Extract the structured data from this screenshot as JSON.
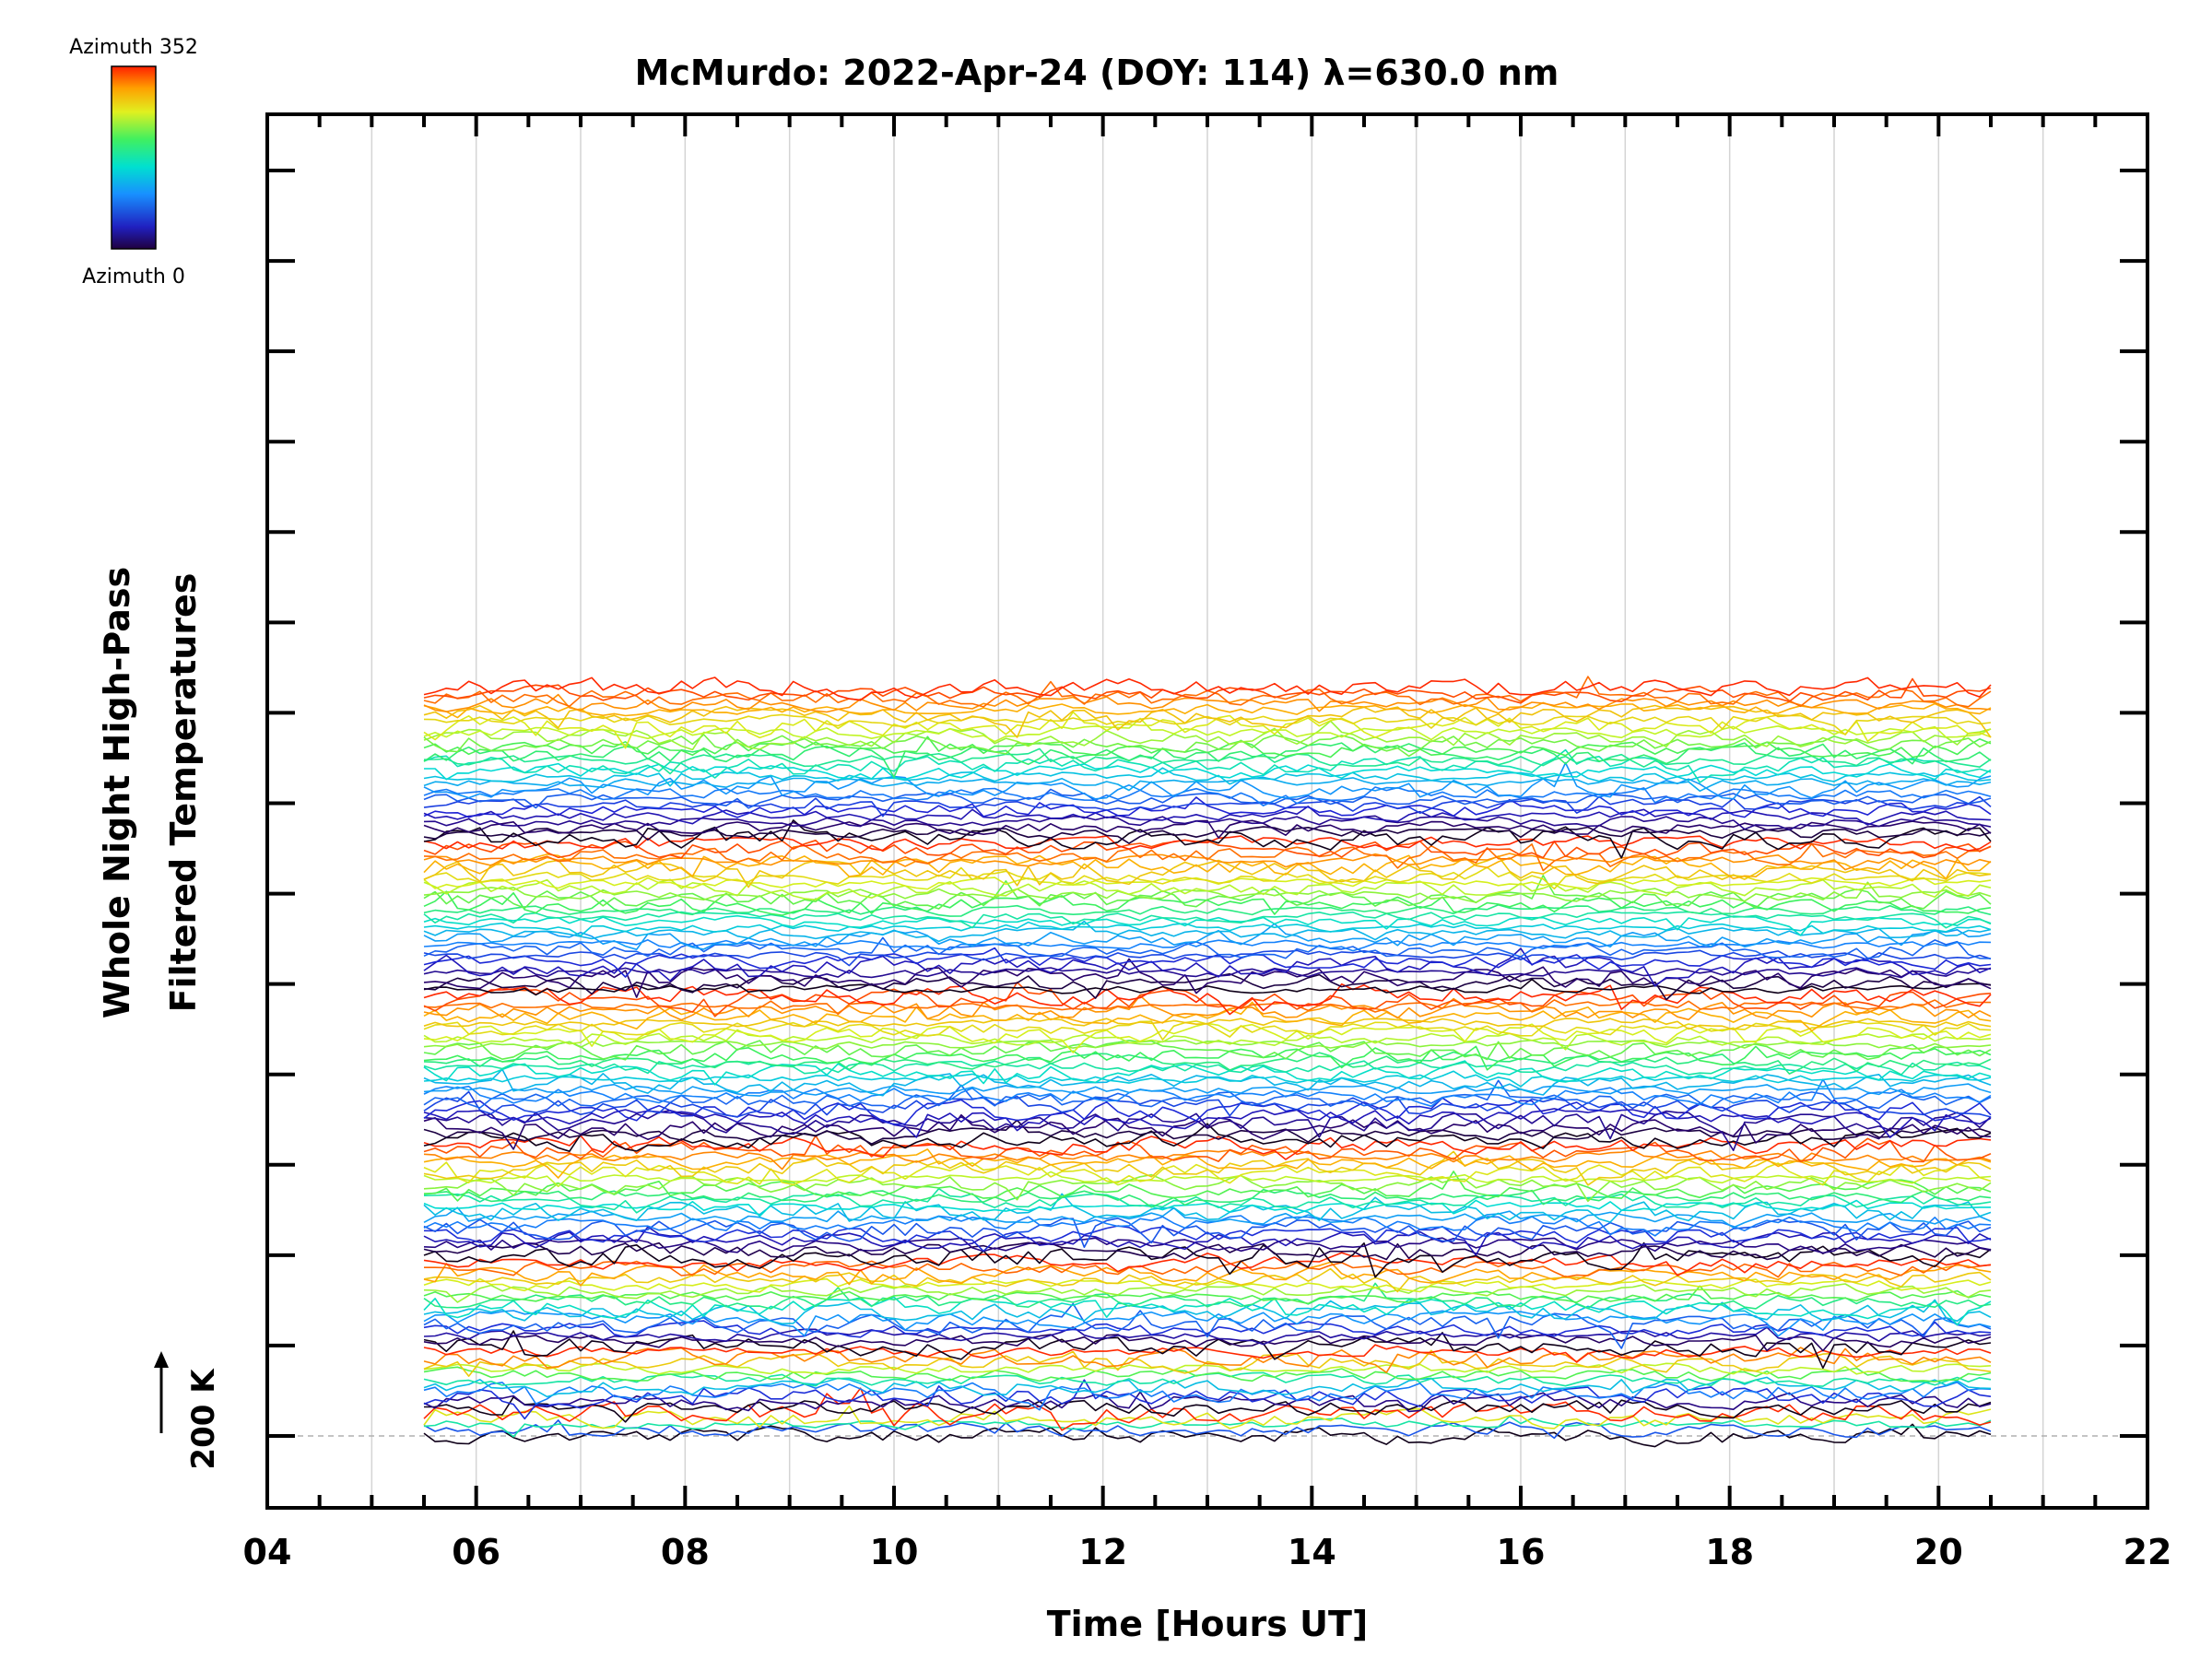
{
  "chart_data": {
    "type": "line",
    "title": "McMurdo: 2022-Apr-24 (DOY: 114) λ=630.0 nm",
    "xlabel": "Time [Hours UT]",
    "ylabel_line1": "Whole Night High-Pass",
    "ylabel_line2": "Filtered Temperatures",
    "xlim": [
      4,
      22
    ],
    "x_ticks": [
      4,
      6,
      8,
      10,
      12,
      14,
      16,
      18,
      20,
      22
    ],
    "x_tick_labels": [
      "04",
      "06",
      "08",
      "10",
      "12",
      "14",
      "16",
      "18",
      "20",
      "22"
    ],
    "x_minor_step": 0.5,
    "grid": "vertical light gray at every hour",
    "y_scale_marker": "200 K",
    "series_time_range": [
      5.5,
      20.5
    ],
    "series_count": 135,
    "series_spacing_K": 50,
    "series_groups": [
      {
        "azimuth_start": 0,
        "azimuth_end": 352,
        "count": 5
      },
      {
        "azimuth_start": 0,
        "azimuth_end": 352,
        "count": 11
      },
      {
        "azimuth_start": 0,
        "azimuth_end": 352,
        "count": 16
      },
      {
        "azimuth_start": 0,
        "azimuth_end": 352,
        "count": 21
      },
      {
        "azimuth_start": 0,
        "azimuth_end": 352,
        "count": 27
      },
      {
        "azimuth_start": 0,
        "azimuth_end": 352,
        "count": 27
      },
      {
        "azimuth_start": 0,
        "azimuth_end": 352,
        "count": 28
      }
    ],
    "colorbar": {
      "top_label": "Azimuth 352",
      "bottom_label": "Azimuth 0",
      "colormap": "rainbow (black/indigo at 0 to red at 352)"
    }
  }
}
